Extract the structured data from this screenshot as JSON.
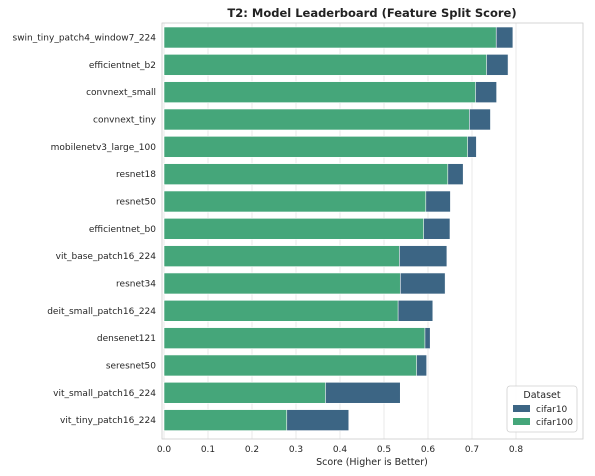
{
  "chart_data": {
    "type": "bar",
    "orientation": "horizontal",
    "title": "T2: Model Leaderboard (Feature Split Score)",
    "xlabel": "Score (Higher is Better)",
    "ylabel": "",
    "xlim": [
      0,
      0.85
    ],
    "xticks": [
      "0.0",
      "0.1",
      "0.2",
      "0.3",
      "0.4",
      "0.5",
      "0.6",
      "0.7",
      "0.8"
    ],
    "grid": true,
    "legend": {
      "title": "Dataset",
      "placement": "bottom-right"
    },
    "categories": [
      "swin_tiny_patch4_window7_224",
      "efficientnet_b2",
      "convnext_small",
      "convnext_tiny",
      "mobilenetv3_large_100",
      "resnet18",
      "resnet50",
      "efficientnet_b0",
      "vit_base_patch16_224",
      "resnet34",
      "deit_small_patch16_224",
      "densenet121",
      "seresnet50",
      "vit_small_patch16_224",
      "vit_tiny_patch16_224"
    ],
    "series": [
      {
        "name": "cifar10",
        "color": "#3c6584",
        "values": [
          0.793,
          0.782,
          0.756,
          0.742,
          0.71,
          0.68,
          0.651,
          0.65,
          0.643,
          0.639,
          0.611,
          0.605,
          0.597,
          0.537,
          0.42
        ]
      },
      {
        "name": "cifar100",
        "color": "#45a67a",
        "values": [
          0.755,
          0.733,
          0.708,
          0.694,
          0.69,
          0.645,
          0.595,
          0.59,
          0.535,
          0.537,
          0.532,
          0.593,
          0.574,
          0.367,
          0.279
        ]
      }
    ]
  }
}
